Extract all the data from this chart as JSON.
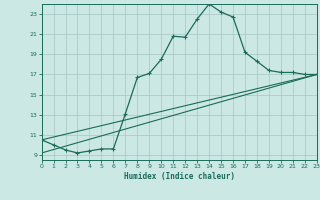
{
  "title": "",
  "xlabel": "Humidex (Indice chaleur)",
  "bg_color": "#cce8e4",
  "grid_color": "#aaccc8",
  "line_color": "#1a6b5a",
  "x_min": 0,
  "x_max": 23,
  "y_min": 8.5,
  "y_max": 24.0,
  "yticks": [
    9,
    11,
    13,
    15,
    17,
    19,
    21,
    23
  ],
  "xticks": [
    0,
    1,
    2,
    3,
    4,
    5,
    6,
    7,
    8,
    9,
    10,
    11,
    12,
    13,
    14,
    15,
    16,
    17,
    18,
    19,
    20,
    21,
    22,
    23
  ],
  "series1_x": [
    0,
    1,
    2,
    3,
    4,
    5,
    6,
    7,
    8,
    9,
    10,
    11,
    12,
    13,
    14,
    15,
    16,
    17,
    18,
    19,
    20,
    21,
    22,
    23
  ],
  "series1_y": [
    10.5,
    10.0,
    9.5,
    9.2,
    9.4,
    9.6,
    9.6,
    13.1,
    16.7,
    17.1,
    18.5,
    20.8,
    20.7,
    22.5,
    24.0,
    23.2,
    22.7,
    19.2,
    18.3,
    17.4,
    17.2,
    17.2,
    17.0,
    17.0
  ],
  "series2_x": [
    0,
    23
  ],
  "series2_y": [
    10.5,
    17.0
  ],
  "series3_x": [
    0,
    23
  ],
  "series3_y": [
    9.2,
    17.0
  ],
  "figwidth": 3.2,
  "figheight": 2.0,
  "dpi": 100
}
